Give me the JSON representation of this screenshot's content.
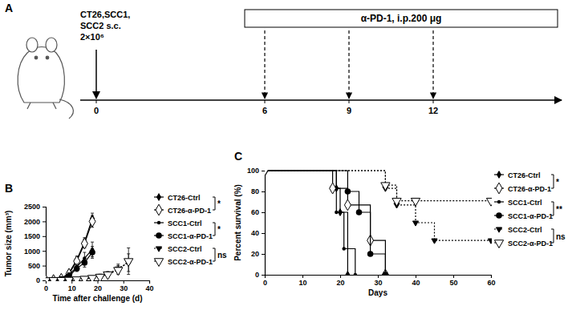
{
  "diagram": {
    "label": "A",
    "inoculation": {
      "lines": [
        "CT26,SCC1,",
        "SCC2 s.c."
      ],
      "dose": "2×10⁶"
    },
    "treatment": "α-PD-1, i.p.200 μg",
    "days": [
      0,
      6,
      9,
      12
    ]
  },
  "chart_data": [
    {
      "type": "line",
      "title": "B",
      "xlabel": "Time after challenge (d)",
      "ylabel": "Tumor size (mm³)",
      "xlim": [
        0,
        40
      ],
      "xticks": [
        0,
        10,
        20,
        30,
        40
      ],
      "ylim": [
        0,
        2500
      ],
      "yticks": [
        0,
        500,
        1000,
        1500,
        2000,
        2500
      ],
      "legend": "right",
      "annotations": [
        "*",
        "*",
        "ns"
      ],
      "series": [
        {
          "name": "CT26-Ctrl",
          "color": "#000000",
          "marker": "diamond",
          "line_style": "solid",
          "x": [
            0,
            3,
            6,
            9,
            12,
            15,
            18
          ],
          "values": [
            0,
            10,
            60,
            250,
            700,
            1300,
            2100
          ],
          "errors": [
            0,
            5,
            20,
            60,
            120,
            150,
            180
          ]
        },
        {
          "name": "CT26-α-PD-1",
          "color": "#000000",
          "marker": "diamond-open",
          "line_style": "solid",
          "x": [
            0,
            3,
            6,
            9,
            12,
            15,
            18
          ],
          "values": [
            0,
            10,
            50,
            220,
            650,
            1250,
            2000
          ],
          "errors": [
            0,
            5,
            20,
            50,
            100,
            150,
            200
          ]
        },
        {
          "name": "SCC1-Ctrl",
          "color": "#000000",
          "marker": "dot",
          "line_style": "solid",
          "x": [
            0,
            3,
            6,
            9,
            12,
            15,
            18
          ],
          "values": [
            0,
            10,
            50,
            200,
            450,
            750,
            1050
          ],
          "errors": [
            0,
            5,
            20,
            60,
            100,
            200,
            250
          ]
        },
        {
          "name": "SCC1-α-PD-1",
          "color": "#000000",
          "marker": "circle",
          "line_style": "solid",
          "x": [
            0,
            3,
            6,
            9,
            12,
            15,
            18
          ],
          "values": [
            0,
            10,
            40,
            150,
            400,
            600,
            950
          ],
          "errors": [
            0,
            5,
            20,
            50,
            100,
            150,
            200
          ]
        },
        {
          "name": "SCC2-Ctrl",
          "color": "#000000",
          "marker": "triangle-down",
          "line_style": "dotted",
          "x": [
            0,
            3,
            6,
            9,
            12,
            15,
            18,
            21,
            24,
            28,
            32
          ],
          "values": [
            0,
            5,
            10,
            20,
            40,
            70,
            100,
            150,
            220,
            400,
            600
          ],
          "errors": [
            0,
            2,
            5,
            10,
            15,
            25,
            40,
            60,
            80,
            150,
            300
          ]
        },
        {
          "name": "SCC2-α-PD-1",
          "color": "#000000",
          "marker": "triangle-down-open",
          "line_style": "dotted",
          "x": [
            0,
            3,
            6,
            9,
            12,
            15,
            18,
            21,
            24,
            28,
            32
          ],
          "values": [
            0,
            5,
            10,
            15,
            30,
            50,
            80,
            120,
            200,
            350,
            650
          ],
          "errors": [
            0,
            2,
            5,
            8,
            12,
            20,
            30,
            50,
            80,
            150,
            450
          ]
        }
      ]
    },
    {
      "type": "step",
      "title": "C",
      "xlabel": "Days",
      "ylabel": "Percent survival (%)",
      "xlim": [
        0,
        60
      ],
      "xticks": [
        0,
        10,
        20,
        30,
        40,
        50,
        60
      ],
      "ylim": [
        0,
        100
      ],
      "yticks": [
        0,
        20,
        40,
        60,
        80,
        100
      ],
      "legend": "right",
      "annotations": [
        "*",
        "**",
        "ns"
      ],
      "series": [
        {
          "name": "CT26-Ctrl",
          "color": "#000000",
          "marker": "diamond",
          "line_style": "solid",
          "x": [
            0,
            19,
            20,
            22
          ],
          "values": [
            100,
            83,
            60,
            0
          ]
        },
        {
          "name": "CT26-α-PD-1",
          "color": "#000000",
          "marker": "diamond-open",
          "line_style": "solid",
          "x": [
            0,
            18,
            22,
            28,
            32
          ],
          "values": [
            100,
            83,
            67,
            33,
            0
          ]
        },
        {
          "name": "SCC1-Ctrl",
          "color": "#000000",
          "marker": "dot",
          "line_style": "solid",
          "x": [
            0,
            19,
            21,
            24
          ],
          "values": [
            100,
            60,
            25,
            0
          ]
        },
        {
          "name": "SCC1-α-PD-1",
          "color": "#000000",
          "marker": "circle",
          "line_style": "solid",
          "x": [
            0,
            22,
            25,
            28,
            32
          ],
          "values": [
            100,
            80,
            60,
            20,
            0
          ]
        },
        {
          "name": "SCC2-Ctrl",
          "color": "#000000",
          "marker": "triangle-down",
          "line_style": "dotted",
          "x": [
            0,
            32,
            35,
            40,
            45,
            60
          ],
          "values": [
            100,
            83,
            67,
            50,
            33,
            33
          ]
        },
        {
          "name": "SCC2-α-PD-1",
          "color": "#000000",
          "marker": "triangle-down-open",
          "line_style": "dotted",
          "x": [
            0,
            32,
            35,
            40,
            60
          ],
          "values": [
            100,
            86,
            71,
            71,
            71
          ]
        }
      ]
    }
  ]
}
